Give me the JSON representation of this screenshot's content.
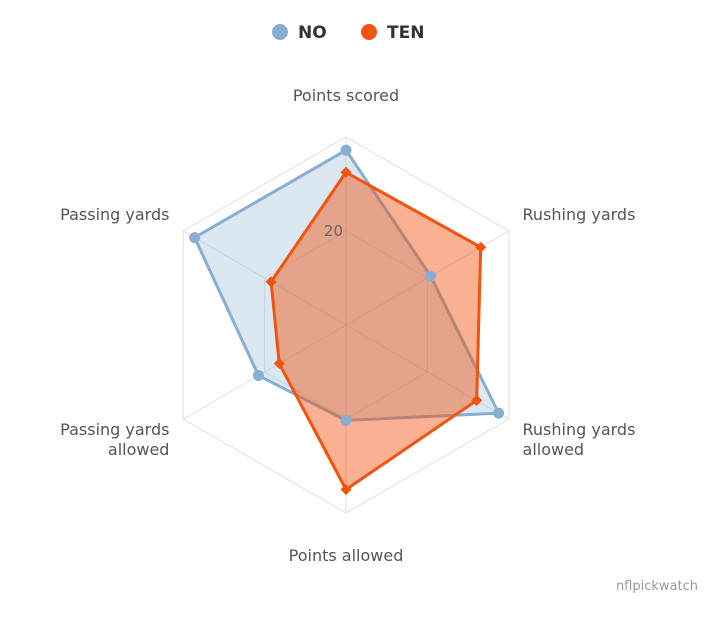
{
  "chart_data": {
    "type": "radar",
    "categories": [
      "Points scored",
      "Rushing yards",
      "Rushing yards allowed",
      "Points allowed",
      "Passing yards allowed",
      "Passing yards"
    ],
    "category_lines": [
      [
        "Points scored"
      ],
      [
        "Rushing yards"
      ],
      [
        "Rushing yards",
        "allowed"
      ],
      [
        "Points allowed"
      ],
      [
        "Passing yards",
        "allowed"
      ],
      [
        "Passing yards"
      ]
    ],
    "radial_ticks": [
      20
    ],
    "rmax": 40,
    "grid": true,
    "legend_placement": "top-center",
    "series": [
      {
        "name": "NO",
        "color": "#88aed2",
        "marker": "circle",
        "values": [
          37.2,
          20.8,
          37.5,
          20.3,
          21.5,
          37.2
        ]
      },
      {
        "name": "TEN",
        "color": "#f2530d",
        "marker": "diamond",
        "values": [
          32.5,
          33.1,
          32.1,
          35.0,
          16.4,
          18.4
        ]
      }
    ]
  },
  "credit": "nflpickwatch"
}
